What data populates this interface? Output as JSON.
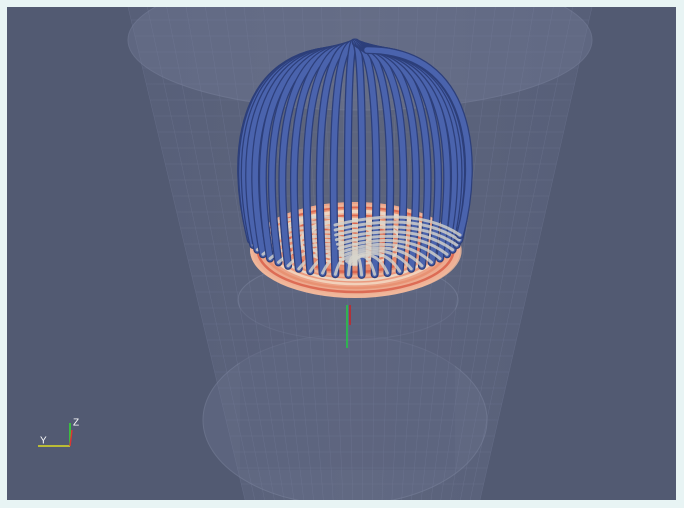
{
  "viewport": {
    "axes": {
      "z_label": "Z",
      "y_label": "Y"
    }
  }
}
